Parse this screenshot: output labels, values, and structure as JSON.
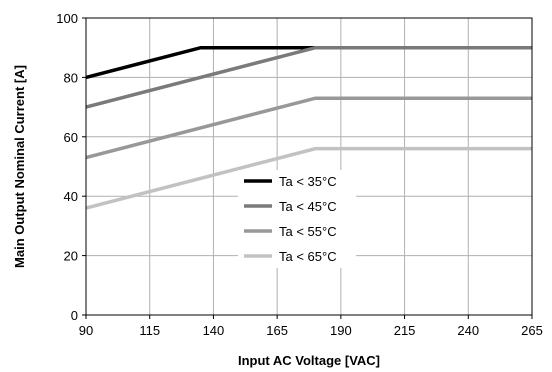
{
  "chart_data": {
    "type": "line",
    "xlabel": "Input AC Voltage [VAC]",
    "ylabel": "Main Output Nominal Current [A]",
    "xlim": [
      90,
      265
    ],
    "ylim": [
      0,
      100
    ],
    "xticks": [
      90,
      115,
      140,
      165,
      190,
      215,
      240,
      265
    ],
    "yticks": [
      0,
      20,
      40,
      60,
      80,
      100
    ],
    "grid": true,
    "legend_position": "lower-center",
    "series": [
      {
        "name": "Ta < 35°C",
        "color": "#000000",
        "x": [
          90,
          135,
          180,
          265
        ],
        "y": [
          80,
          90,
          90,
          90
        ]
      },
      {
        "name": "Ta < 45°C",
        "color": "#7a7a7a",
        "x": [
          90,
          180,
          265
        ],
        "y": [
          70,
          90,
          90
        ]
      },
      {
        "name": "Ta < 55°C",
        "color": "#989898",
        "x": [
          90,
          180,
          265
        ],
        "y": [
          53,
          73,
          73
        ]
      },
      {
        "name": "Ta < 65°C",
        "color": "#c2c2c2",
        "x": [
          90,
          180,
          265
        ],
        "y": [
          36,
          56,
          56
        ]
      }
    ]
  }
}
